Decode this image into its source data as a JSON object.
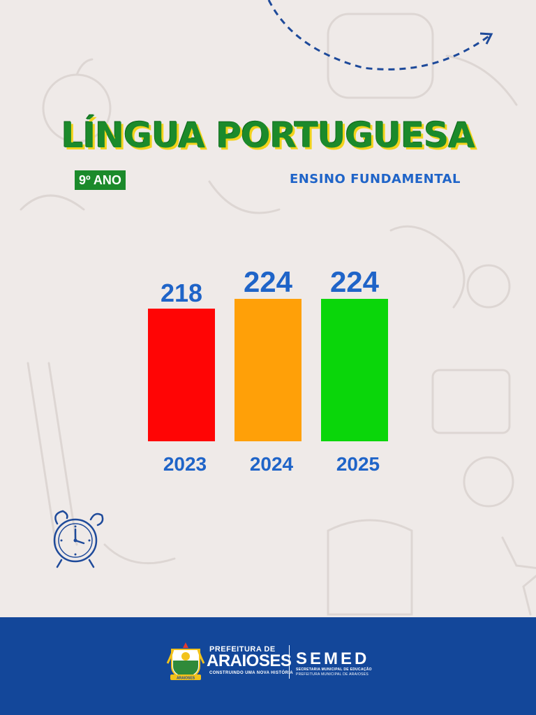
{
  "header": {
    "title": "LÍNGUA PORTUGUESA",
    "grade": "9º ANO",
    "level": "ENSINO FUNDAMENTAL"
  },
  "chart_data": {
    "type": "bar",
    "categories": [
      "2023",
      "2024",
      "2025"
    ],
    "values": [
      218,
      224,
      224
    ],
    "colors": [
      "#ff0505",
      "#ffa008",
      "#0ad60a"
    ],
    "title": "",
    "xlabel": "",
    "ylabel": "",
    "grid": false,
    "data_labels": true
  },
  "footer": {
    "prefeitura": "PREFEITURA DE",
    "city": "ARAIOSES",
    "slogan": "CONSTRUINDO UMA NOVA HISTÓRIA",
    "semed": "SEMED",
    "semed_line1": "SECRETARIA MUNICIPAL DE EDUCAÇÃO",
    "semed_line2": "PREFEITURA MUNICIPAL DE ARAIOSES",
    "crest_label": "ARAIOSES"
  },
  "colors": {
    "background": "#efeae8",
    "title_green": "#1b8a2b",
    "title_shadow": "#f2d31b",
    "accent_blue": "#1f64c8",
    "footer_blue": "#13479a"
  },
  "icons": [
    "dashed-arrow-icon",
    "alarm-clock-icon",
    "crest-icon"
  ]
}
